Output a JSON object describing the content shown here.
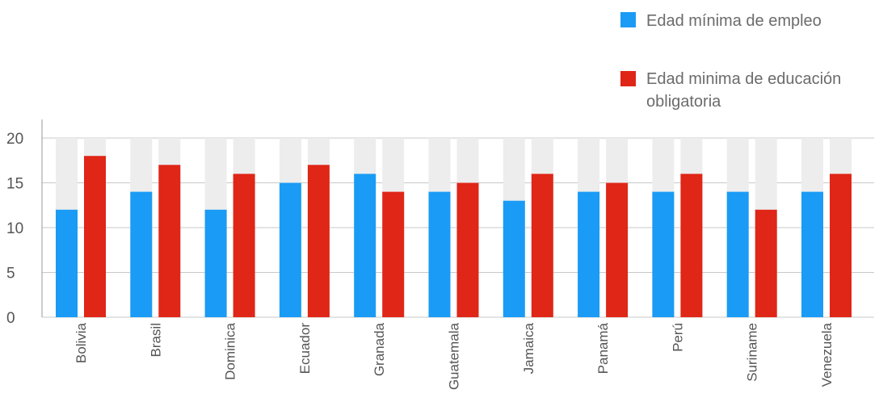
{
  "chart_data": {
    "type": "bar",
    "title": "",
    "xlabel": "",
    "ylabel": "",
    "ylim": [
      0,
      20
    ],
    "yticks": [
      0,
      5,
      10,
      15,
      20
    ],
    "grid": true,
    "legend_position": "top-right",
    "background_bar_max": 20,
    "categories": [
      "Bolivia",
      "Brasil",
      "Dominica",
      "Ecuador",
      "Granada",
      "Guatemala",
      "Jamaica",
      "Panamá",
      "Perú",
      "Suriname",
      "Venezuela"
    ],
    "series": [
      {
        "name": "Edad mínima de empleo",
        "color": "#1a9bf5",
        "values": [
          12,
          14,
          12,
          15,
          16,
          14,
          13,
          14,
          14,
          14,
          14
        ]
      },
      {
        "name": "Edad minima de educación obligatoria",
        "name_lines": [
          "Edad minima de educación",
          "obligatoria"
        ],
        "color": "#df2617",
        "values": [
          18,
          17,
          16,
          17,
          14,
          15,
          16,
          15,
          16,
          12,
          16
        ]
      }
    ],
    "colors": {
      "background_bar": "#ededed",
      "gridline": "#c8c8c8",
      "axis": "#9a9a9a",
      "text": "#555555"
    }
  }
}
